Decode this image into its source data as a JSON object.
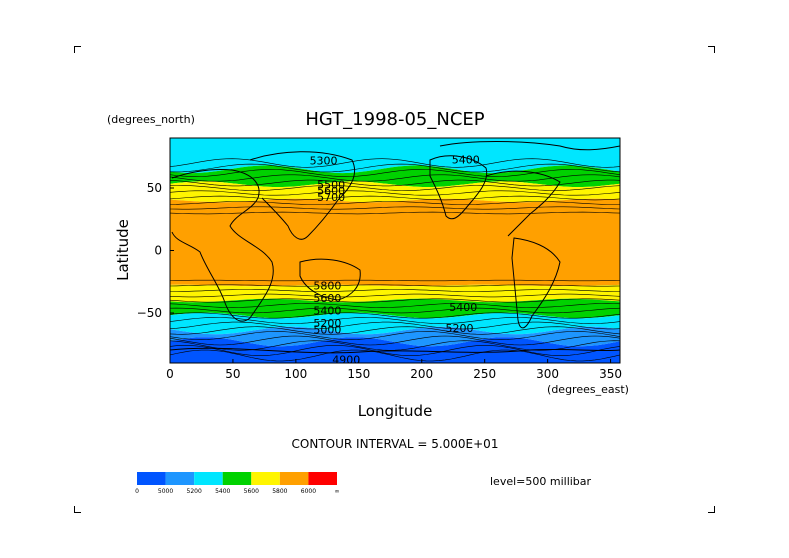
{
  "chart_data": {
    "type": "heatmap",
    "title": "HGT_1998-05_NCEP",
    "xlabel": "Longitude",
    "ylabel": "Latitude",
    "x_units_label": "(degrees_east)",
    "y_units_label": "(degrees_north)",
    "xlim": [
      0,
      357.5
    ],
    "ylim": [
      -90,
      90
    ],
    "x_ticks": [
      0,
      50,
      100,
      150,
      200,
      250,
      300,
      350
    ],
    "y_ticks": [
      50,
      0,
      -50
    ],
    "y_tick_labels": [
      "50",
      "0",
      "−50"
    ],
    "contour_interval_text": "CONTOUR INTERVAL = 5.000E+01",
    "level_text": "level=500 millibar",
    "contour_labels": [
      {
        "text": "5300",
        "x": 122,
        "y": 72
      },
      {
        "text": "5400",
        "x": 235,
        "y": 73
      },
      {
        "text": "5500",
        "x": 128,
        "y": 53
      },
      {
        "text": "5600",
        "x": 128,
        "y": 48
      },
      {
        "text": "5700",
        "x": 128,
        "y": 43
      },
      {
        "text": "5800",
        "x": 125,
        "y": -28
      },
      {
        "text": "5600",
        "x": 125,
        "y": -38
      },
      {
        "text": "5400",
        "x": 125,
        "y": -48
      },
      {
        "text": "5200",
        "x": 125,
        "y": -58
      },
      {
        "text": "5000",
        "x": 125,
        "y": -63
      },
      {
        "text": "5400",
        "x": 233,
        "y": -45
      },
      {
        "text": "5200",
        "x": 230,
        "y": -62
      },
      {
        "text": "4900",
        "x": 140,
        "y": -87
      }
    ],
    "colorbar": {
      "labels": [
        "0",
        "5000",
        "5200",
        "5400",
        "5600",
        "5800",
        "6000",
        "∞"
      ],
      "colors": [
        "#0055ff",
        "#1e96ff",
        "#00e6ff",
        "#00d200",
        "#fff500",
        "#ffa000",
        "#ff0000"
      ]
    },
    "bands": [
      {
        "lat_from": 90,
        "lat_to": 65,
        "color": "#00e6ff"
      },
      {
        "lat_from": 65,
        "lat_to": 53,
        "color": "#00d200"
      },
      {
        "lat_from": 53,
        "lat_to": 40,
        "color": "#fff500"
      },
      {
        "lat_from": 40,
        "lat_to": -28,
        "color": "#ffa000"
      },
      {
        "lat_from": -28,
        "lat_to": -40,
        "color": "#fff500"
      },
      {
        "lat_from": -40,
        "lat_to": -52,
        "color": "#00d200"
      },
      {
        "lat_from": -52,
        "lat_to": -64,
        "color": "#00e6ff"
      },
      {
        "lat_from": -64,
        "lat_to": -73,
        "color": "#1e96ff"
      },
      {
        "lat_from": -73,
        "lat_to": -90,
        "color": "#0055ff"
      }
    ]
  }
}
